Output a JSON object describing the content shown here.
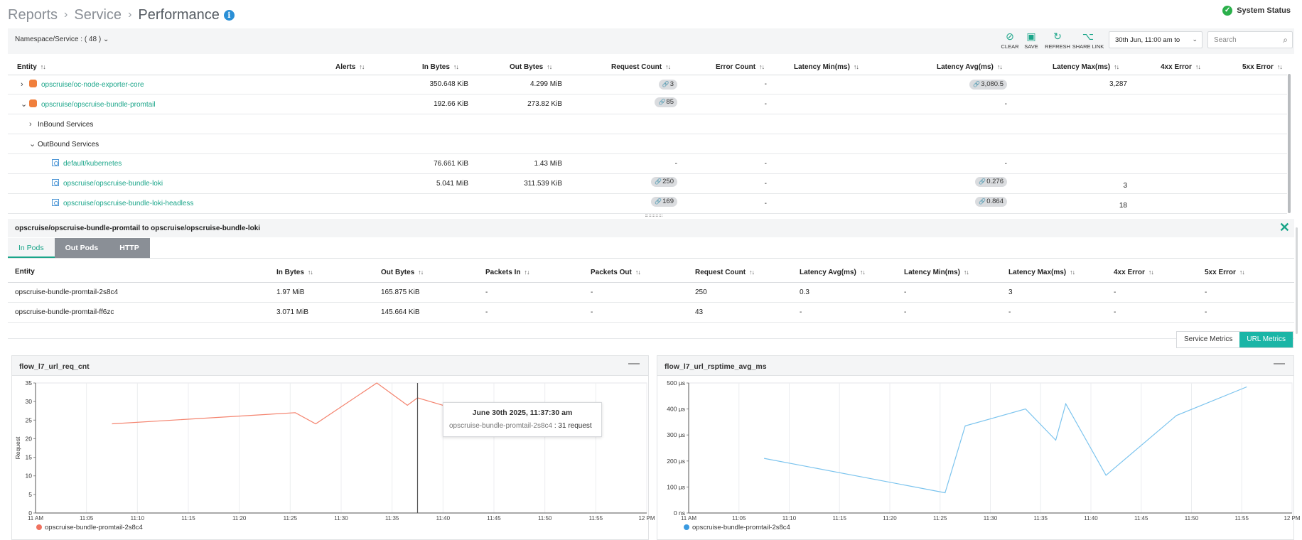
{
  "breadcrumb": {
    "items": [
      "Reports",
      "Service",
      "Performance"
    ],
    "info_icon": "i"
  },
  "system_status": {
    "label": "System Status",
    "icon": "check-circle-icon",
    "color": "#2bb04b"
  },
  "toolbar": {
    "namespace_filter": "Namespace/Service : ( 48 )",
    "clear": "CLEAR",
    "save": "SAVE",
    "refresh": "REFRESH",
    "share_link": "SHARE LINK",
    "date_range": "30th Jun, 11:00 am to",
    "search_placeholder": "Search"
  },
  "accent_color": "#1aa589",
  "main_table": {
    "columns": [
      "Entity",
      "Alerts",
      "In Bytes",
      "Out Bytes",
      "Request Count",
      "Error Count",
      "Latency Min(ms)",
      "Latency Avg(ms)",
      "Latency Max(ms)",
      "4xx Error",
      "5xx Error"
    ],
    "rows": [
      {
        "entity": "opscruise/oc-node-exporter-core",
        "in_bytes": "350.648 KiB",
        "out_bytes": "4.299 MiB",
        "request_count": "3",
        "error_count": "-",
        "latency_avg": "3,080.5",
        "latency_max": "3,287"
      },
      {
        "entity": "opscruise/opscruise-bundle-promtail",
        "in_bytes": "192.66 KiB",
        "out_bytes": "273.82 KiB",
        "request_count": "85",
        "error_count": "-",
        "latency_avg": "-"
      },
      {
        "entity": "InBound Services"
      },
      {
        "entity": "OutBound Services"
      },
      {
        "entity": "default/kubernetes",
        "in_bytes": "76.661 KiB",
        "out_bytes": "1.43 MiB",
        "request_count": "-",
        "error_count": "-",
        "latency_avg": "-"
      },
      {
        "entity": "opscruise/opscruise-bundle-loki",
        "in_bytes": "5.041 MiB",
        "out_bytes": "311.539 KiB",
        "request_count": "250",
        "error_count": "-",
        "latency_avg": "0.276",
        "latency_max": "3"
      },
      {
        "entity": "opscruise/opscruise-bundle-loki-headless",
        "request_count": "169",
        "error_count": "-",
        "latency_avg": "0.864",
        "latency_max": "18"
      }
    ]
  },
  "detail": {
    "title": "opscruise/opscruise-bundle-promtail to opscruise/opscruise-bundle-loki",
    "tabs": [
      "In Pods",
      "Out Pods",
      "HTTP"
    ],
    "columns": [
      "Entity",
      "In Bytes",
      "Out Bytes",
      "Packets In",
      "Packets Out",
      "Request Count",
      "Latency Avg(ms)",
      "Latency Min(ms)",
      "Latency Max(ms)",
      "4xx Error",
      "5xx Error"
    ],
    "rows": [
      [
        "opscruise-bundle-promtail-2s8c4",
        "1.97 MiB",
        "165.875 KiB",
        "-",
        "-",
        "250",
        "0.3",
        "-",
        "3",
        "-",
        "-"
      ],
      [
        "opscruise-bundle-promtail-ff6zc",
        "3.071 MiB",
        "145.664 KiB",
        "-",
        "-",
        "43",
        "-",
        "-",
        "-",
        "-",
        "-"
      ]
    ]
  },
  "metric_toggle": {
    "service": "Service Metrics",
    "url": "URL Metrics"
  },
  "chart_data": [
    {
      "type": "line",
      "title": "flow_l7_url_req_cnt",
      "ylabel": "Request",
      "ylim": [
        0,
        35
      ],
      "yticks": [
        0,
        5,
        10,
        15,
        20,
        25,
        30,
        35
      ],
      "xticks": [
        "11 AM",
        "11:05",
        "11:10",
        "11:15",
        "11:20",
        "11:25",
        "11:30",
        "11:35",
        "11:40",
        "11:45",
        "11:50",
        "11:55",
        "12 PM"
      ],
      "grid": true,
      "color": "#f4836e",
      "series": [
        {
          "name": "opscruise-bundle-promtail-2s8c4",
          "x": [
            "11:07:30",
            "11:25:30",
            "11:27:30",
            "11:33:30",
            "11:36:30",
            "11:37:30",
            "11:40:00"
          ],
          "values": [
            24,
            27,
            24,
            35,
            29,
            31,
            29
          ]
        }
      ],
      "tooltip": {
        "title": "June 30th 2025, 11:37:30 am",
        "series": "opscruise-bundle-promtail-2s8c4",
        "value": ": 31 request"
      }
    },
    {
      "type": "line",
      "title": "flow_l7_url_rsptime_avg_ms",
      "ylim": [
        0,
        500
      ],
      "yticks": [
        "0 ns",
        "100 µs",
        "200 µs",
        "300 µs",
        "400 µs",
        "500 µs"
      ],
      "xticks": [
        "11 AM",
        "11:05",
        "11:10",
        "11:15",
        "11:20",
        "11:25",
        "11:30",
        "11:35",
        "11:40",
        "11:45",
        "11:50",
        "11:55",
        "12 PM"
      ],
      "grid": true,
      "color": "#7cc4ee",
      "series": [
        {
          "name": "opscruise-bundle-promtail-2s8c4",
          "x": [
            "11:07:30",
            "11:25:30",
            "11:27:30",
            "11:33:30",
            "11:36:30",
            "11:37:30",
            "11:41:30",
            "11:48:30",
            "11:55:30"
          ],
          "values": [
            210,
            78,
            335,
            400,
            280,
            420,
            145,
            375,
            485
          ]
        }
      ]
    }
  ]
}
